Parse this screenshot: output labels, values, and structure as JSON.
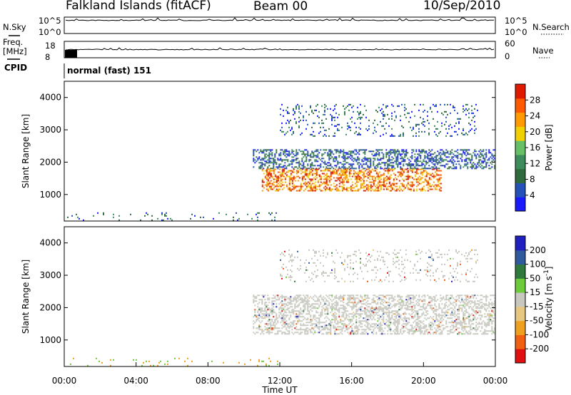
{
  "header": {
    "title": "Falkland Islands (fitACF)",
    "beam": "Beam 00",
    "date": "10/Sep/2010"
  },
  "top_panels": {
    "nsky": {
      "label": "N.Sky",
      "ticks": [
        "10^5",
        "10^0"
      ],
      "right_label": "N.Search",
      "right_ticks": [
        "10^5",
        "10^0"
      ]
    },
    "freq": {
      "label_line1": "Freq.",
      "label_line2": "[MHz]",
      "ticks": [
        "18",
        "8"
      ],
      "right_label": "Nave",
      "right_ticks": [
        "60",
        "0"
      ]
    },
    "cpid": {
      "label": "CPID",
      "value": "normal (fast) 151"
    }
  },
  "colors": {
    "power_scale": [
      "#1a1aff",
      "#2452b8",
      "#2f6a3c",
      "#3c8c5c",
      "#66c066",
      "#f0d000",
      "#ff9a00",
      "#ff5a00",
      "#e01a00"
    ],
    "velocity_scale": [
      "#2020c0",
      "#2f5a9e",
      "#2f7a3c",
      "#6ccc3c",
      "#c8c8c0",
      "#e8c880",
      "#f0a020",
      "#f06010",
      "#e01010"
    ]
  },
  "chart_data": [
    {
      "type": "heatmap",
      "title": "",
      "ylabel": "Slant Range [km]",
      "xlabel": "",
      "ylim": [
        180,
        4500
      ],
      "yticks": [
        "1000",
        "2000",
        "3000",
        "4000"
      ],
      "xlim": [
        "00:00",
        "24:00"
      ],
      "colorbar": {
        "label": "Power [dB]",
        "range": [
          0,
          32
        ],
        "ticks": [
          "4",
          "8",
          "12",
          "16",
          "20",
          "24",
          "28"
        ]
      },
      "features": [
        {
          "feature": "sparse near-range ground scatter",
          "x_start": "00:00",
          "x_end": "12:00",
          "range_km": [
            200,
            450
          ],
          "value_db": 6
        },
        {
          "feature": "main scatter band",
          "x_start": "10:30",
          "x_end": "24:00",
          "range_km": [
            1800,
            2400
          ],
          "value_db": 8
        },
        {
          "feature": "strong echo band",
          "x_start": "11:00",
          "x_end": "21:00",
          "range_km": [
            1100,
            1800
          ],
          "value_db": 22
        },
        {
          "feature": "high-range patches",
          "x_start": "12:00",
          "x_end": "23:00",
          "range_km": [
            2800,
            3800
          ],
          "value_db": 6
        }
      ]
    },
    {
      "type": "heatmap",
      "title": "",
      "ylabel": "Slant Range [km]",
      "xlabel": "Time UT",
      "ylim": [
        180,
        4500
      ],
      "yticks": [
        "1000",
        "2000",
        "3000",
        "4000"
      ],
      "xticks": [
        "00:00",
        "04:00",
        "08:00",
        "12:00",
        "16:00",
        "20:00",
        "00:00"
      ],
      "colorbar": {
        "label": "Velocity [m s^-1]",
        "ticks": [
          "200",
          "100",
          "50",
          "15",
          "-15",
          "-50",
          "-100",
          "-200"
        ]
      },
      "features": [
        {
          "feature": "near-range scatter",
          "x_start": "00:00",
          "x_end": "12:00",
          "range_km": [
            200,
            450
          ],
          "value_ms": -40
        },
        {
          "feature": "ground scatter band",
          "x_start": "10:30",
          "x_end": "24:00",
          "range_km": [
            1200,
            2400
          ],
          "value_ms": 0
        },
        {
          "feature": "high-range patches",
          "x_start": "12:00",
          "x_end": "23:00",
          "range_km": [
            2800,
            3800
          ],
          "value_ms": 0
        }
      ]
    }
  ]
}
